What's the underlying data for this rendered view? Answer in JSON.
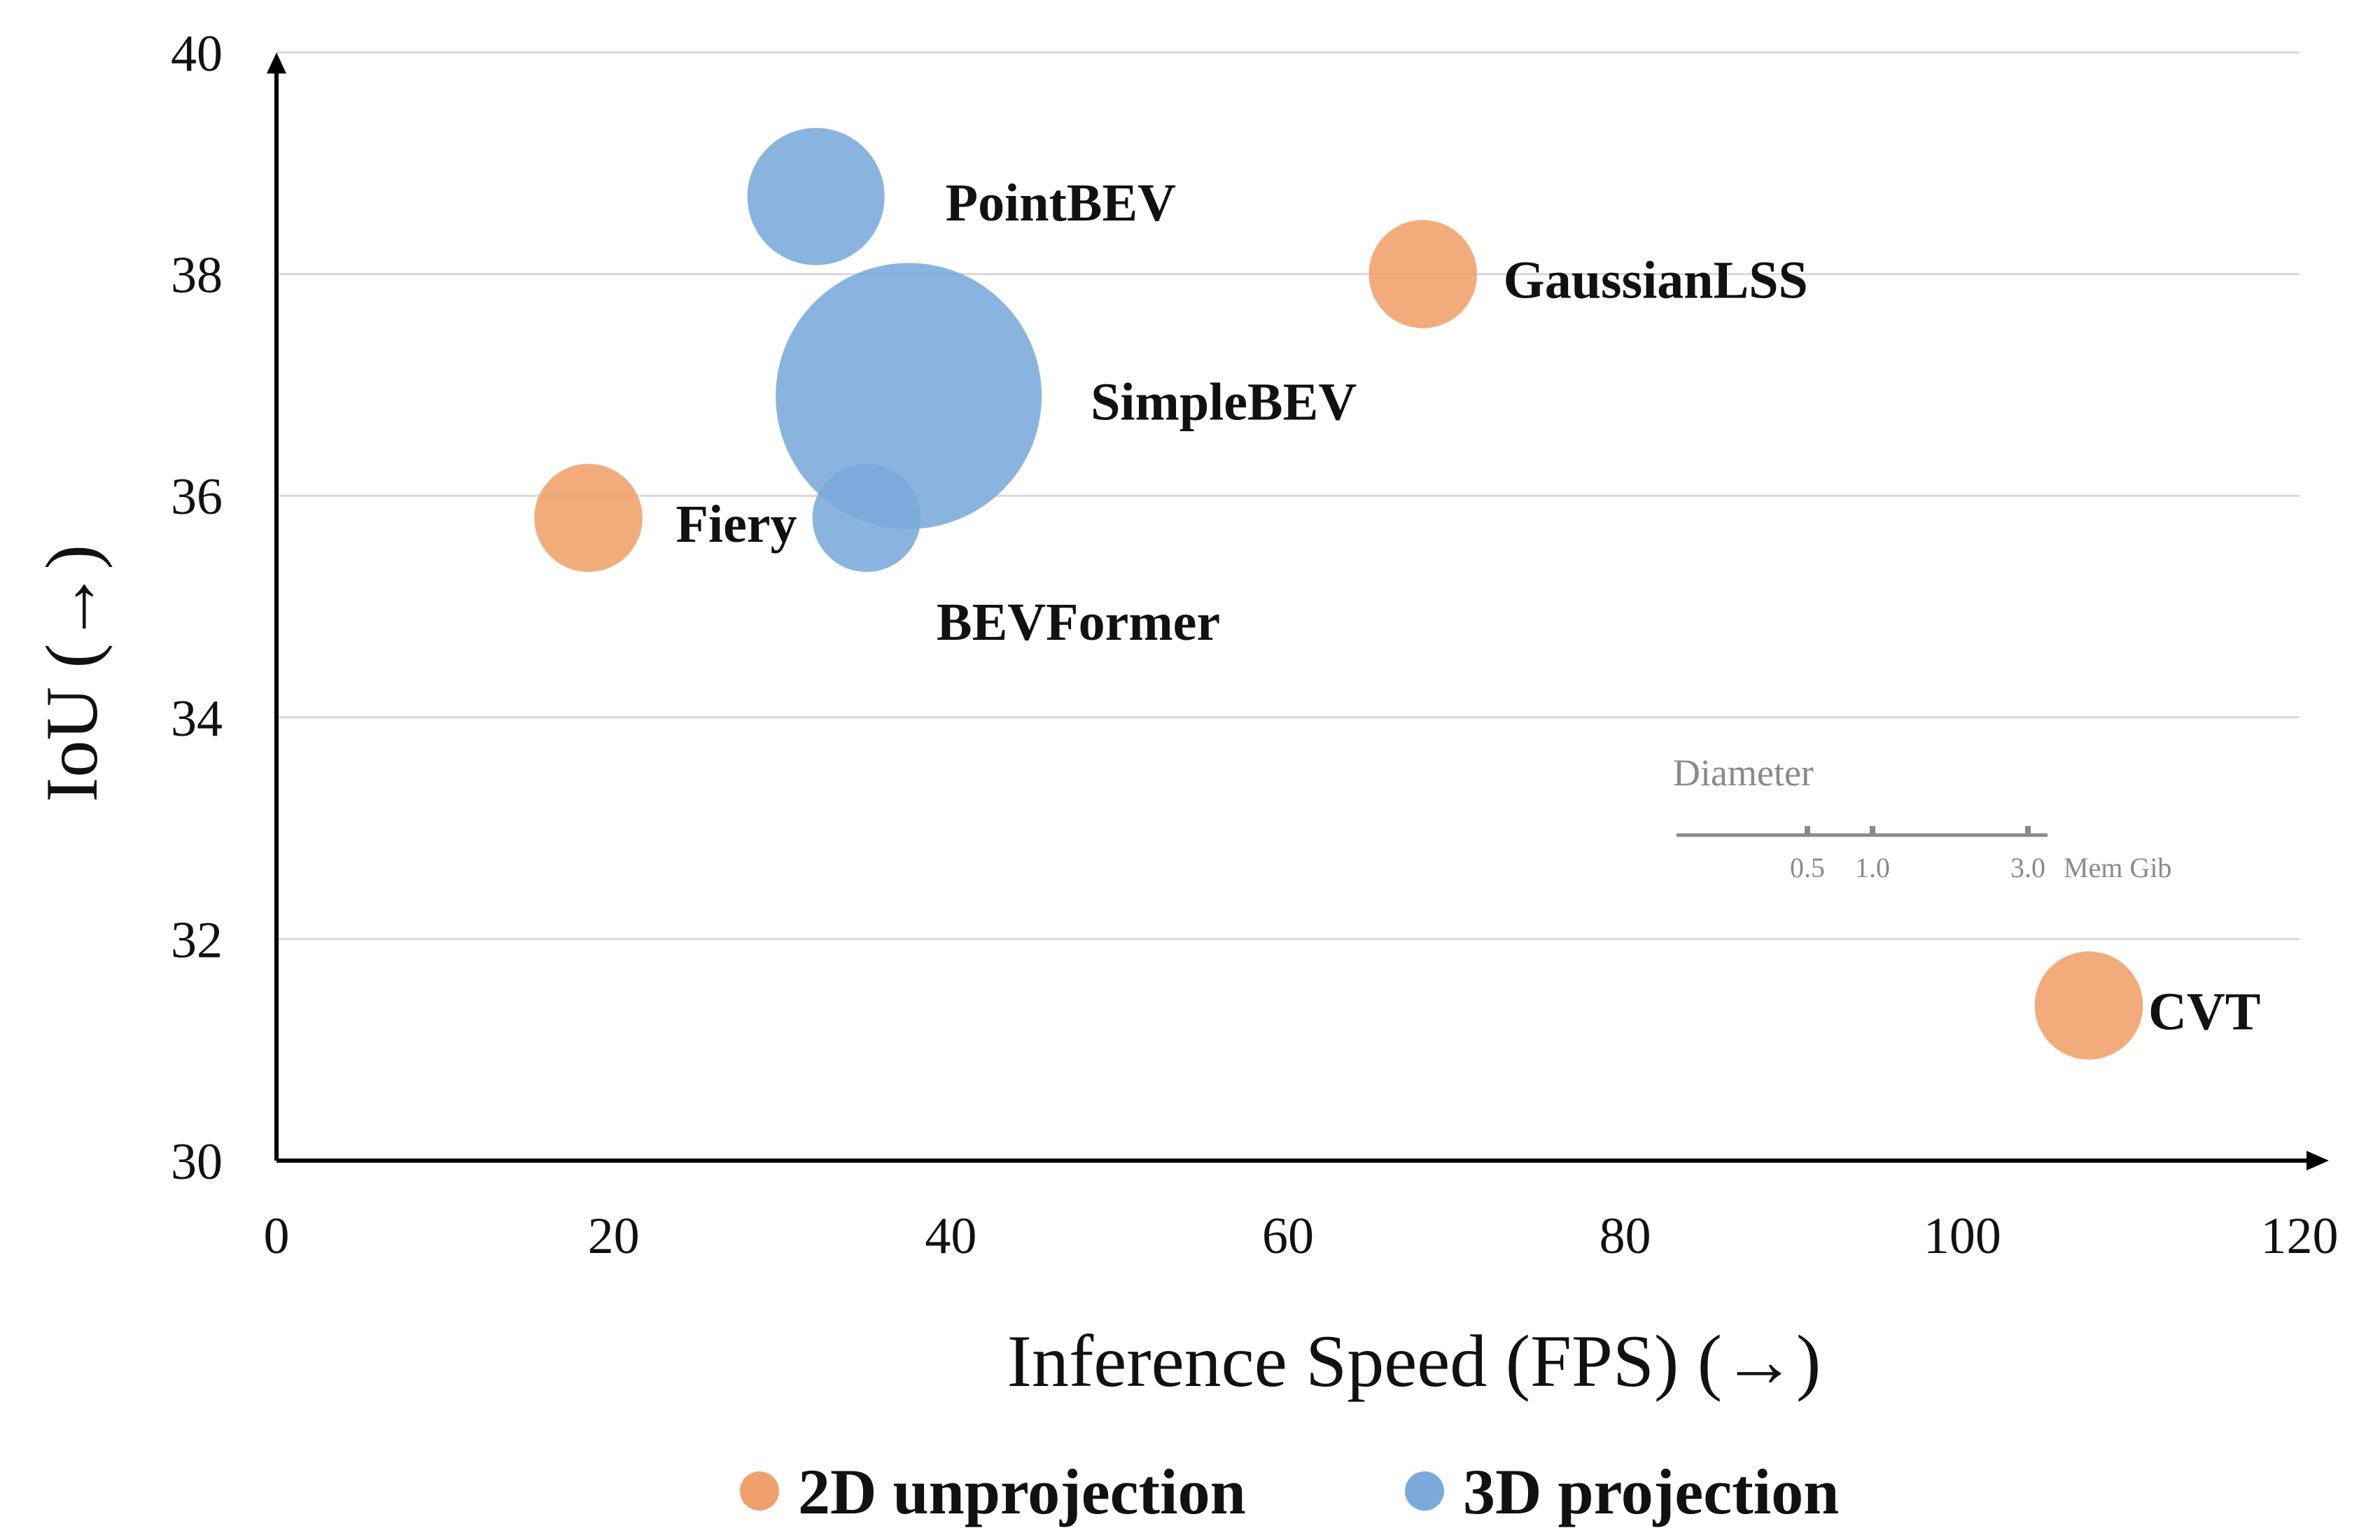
{
  "chart_data": {
    "type": "scatter",
    "xlabel": "Inference Speed (FPS) (→)",
    "ylabel": "IoU (→)",
    "xlim": [
      0,
      120
    ],
    "ylim": [
      30,
      40
    ],
    "xticks": [
      "0",
      "20",
      "40",
      "60",
      "80",
      "100",
      "120"
    ],
    "yticks": [
      "30",
      "32",
      "34",
      "36",
      "38",
      "40"
    ],
    "grid": "horizontal",
    "legend_position": "bottom",
    "series": [
      {
        "name": "2D unprojection",
        "color": "#F0A06A",
        "points": [
          {
            "label": "Fiery",
            "x": 18.5,
            "y": 35.8,
            "mem": 0.55
          },
          {
            "label": "GaussianLSS",
            "x": 68,
            "y": 38.0,
            "mem": 0.55
          },
          {
            "label": "CVT",
            "x": 107.5,
            "y": 31.4,
            "mem": 0.55
          }
        ]
      },
      {
        "name": "3D projection",
        "color": "#7AAADB",
        "points": [
          {
            "label": "PointBEV",
            "x": 32,
            "y": 38.7,
            "mem": 1.0
          },
          {
            "label": "SimpleBEV",
            "x": 37.5,
            "y": 36.9,
            "mem": 3.0
          },
          {
            "label": "BEVFormer",
            "x": 35,
            "y": 35.8,
            "mem": 0.55
          }
        ]
      }
    ],
    "size_legend": {
      "title": "Diameter",
      "ticks": [
        "0.5",
        "1.0",
        "3.0"
      ],
      "unit": "Mem Gib"
    }
  }
}
